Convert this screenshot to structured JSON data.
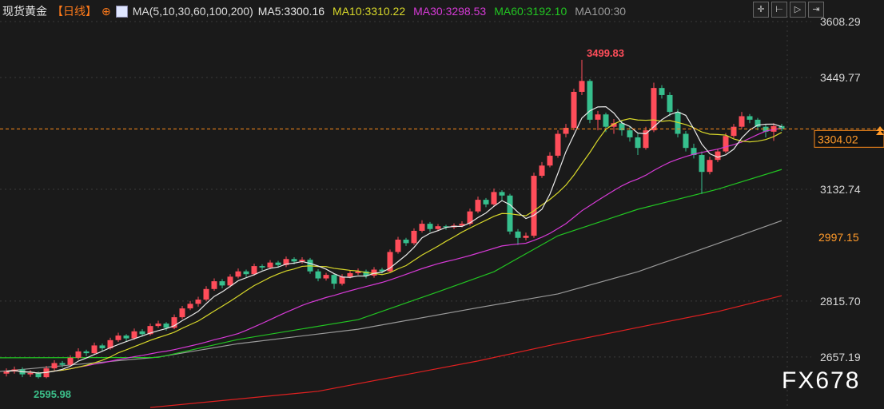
{
  "header": {
    "title": "现货黄金",
    "period": "【日线】",
    "ma_label": "MA(5,10,30,60,100,200)",
    "ma_values": [
      {
        "text": "MA5:3300.16",
        "color": "#e8e8e8"
      },
      {
        "text": "MA10:3310.22",
        "color": "#d8d82a"
      },
      {
        "text": "MA30:3298.53",
        "color": "#d63ad6"
      },
      {
        "text": "MA60:3192.10",
        "color": "#22c422"
      },
      {
        "text": "MA100:30",
        "color": "#9a9a9a"
      }
    ]
  },
  "toolbar": {
    "icons": [
      "crosshair-icon",
      "zoom-range-icon",
      "play-icon",
      "jump-end-icon"
    ]
  },
  "watermark": "FX678",
  "chart_data": {
    "type": "candlestick",
    "y_ticks": [
      "3608.29",
      "3449.77",
      "3132.74",
      "2815.70",
      "2657.19"
    ],
    "y_tick_values": [
      3608.29,
      3449.77,
      3132.74,
      2815.7,
      2657.19
    ],
    "highlight_label": {
      "text": "2997.15",
      "value": 2997.15
    },
    "current_price": {
      "text": "3304.02",
      "value": 3304.02
    },
    "annotations": [
      {
        "text": "3499.83",
        "index": 72,
        "value": 3499.83,
        "color": "#ff4d5a"
      },
      {
        "text": "2595.98",
        "index": 4,
        "value": 2595.98,
        "color": "#3cc08a"
      }
    ],
    "colors": {
      "up": "#ff4d5a",
      "down": "#36bf8d",
      "ma5": "#e8e8e8",
      "ma10": "#d8d82a",
      "ma30": "#d63ad6",
      "ma60": "#22c422",
      "ma100": "#9a9a9a",
      "ma200": "#e02020"
    },
    "ohlc": [
      [
        2610,
        2625,
        2602,
        2616
      ],
      [
        2616,
        2630,
        2610,
        2622
      ],
      [
        2622,
        2628,
        2600,
        2608
      ],
      [
        2608,
        2620,
        2601,
        2612
      ],
      [
        2612,
        2616,
        2595.98,
        2600
      ],
      [
        2600,
        2632,
        2597,
        2625
      ],
      [
        2625,
        2648,
        2620,
        2640
      ],
      [
        2640,
        2646,
        2628,
        2635
      ],
      [
        2635,
        2662,
        2630,
        2655
      ],
      [
        2655,
        2682,
        2650,
        2673
      ],
      [
        2673,
        2678,
        2660,
        2668
      ],
      [
        2668,
        2698,
        2664,
        2690
      ],
      [
        2690,
        2695,
        2675,
        2682
      ],
      [
        2682,
        2712,
        2678,
        2705
      ],
      [
        2705,
        2726,
        2700,
        2718
      ],
      [
        2718,
        2722,
        2702,
        2710
      ],
      [
        2710,
        2738,
        2706,
        2730
      ],
      [
        2730,
        2736,
        2715,
        2722
      ],
      [
        2722,
        2752,
        2718,
        2745
      ],
      [
        2745,
        2760,
        2740,
        2752
      ],
      [
        2752,
        2756,
        2732,
        2740
      ],
      [
        2740,
        2778,
        2736,
        2770
      ],
      [
        2770,
        2802,
        2765,
        2795
      ],
      [
        2795,
        2816,
        2790,
        2808
      ],
      [
        2808,
        2828,
        2800,
        2820
      ],
      [
        2820,
        2858,
        2815,
        2850
      ],
      [
        2850,
        2880,
        2845,
        2872
      ],
      [
        2872,
        2878,
        2852,
        2860
      ],
      [
        2860,
        2892,
        2855,
        2885
      ],
      [
        2885,
        2908,
        2880,
        2900
      ],
      [
        2900,
        2905,
        2884,
        2892
      ],
      [
        2892,
        2922,
        2888,
        2915
      ],
      [
        2915,
        2920,
        2903,
        2911
      ],
      [
        2911,
        2932,
        2906,
        2925
      ],
      [
        2925,
        2930,
        2910,
        2918
      ],
      [
        2918,
        2942,
        2912,
        2935
      ],
      [
        2935,
        2940,
        2920,
        2928
      ],
      [
        2928,
        2940,
        2922,
        2933
      ],
      [
        2933,
        2938,
        2893,
        2900
      ],
      [
        2900,
        2906,
        2872,
        2880
      ],
      [
        2880,
        2896,
        2874,
        2890
      ],
      [
        2890,
        2894,
        2850,
        2865
      ],
      [
        2865,
        2892,
        2860,
        2885
      ],
      [
        2885,
        2902,
        2880,
        2895
      ],
      [
        2895,
        2908,
        2890,
        2900
      ],
      [
        2900,
        2905,
        2880,
        2888
      ],
      [
        2888,
        2912,
        2882,
        2905
      ],
      [
        2905,
        2910,
        2894,
        2900
      ],
      [
        2900,
        2962,
        2896,
        2955
      ],
      [
        2955,
        2998,
        2950,
        2990
      ],
      [
        2990,
        2995,
        2972,
        2980
      ],
      [
        2980,
        3022,
        2975,
        3015
      ],
      [
        3015,
        3045,
        3010,
        3035
      ],
      [
        3035,
        3040,
        3012,
        3020
      ],
      [
        3020,
        3034,
        3014,
        3028
      ],
      [
        3028,
        3032,
        3018,
        3025
      ],
      [
        3025,
        3036,
        3020,
        3030
      ],
      [
        3030,
        3042,
        3025,
        3035
      ],
      [
        3035,
        3078,
        3030,
        3070
      ],
      [
        3070,
        3112,
        3065,
        3103
      ],
      [
        3103,
        3108,
        3082,
        3090
      ],
      [
        3090,
        3135,
        3085,
        3125
      ],
      [
        3125,
        3130,
        3100,
        3115
      ],
      [
        3115,
        3120,
        3005,
        3013
      ],
      [
        3013,
        3020,
        2975,
        2995
      ],
      [
        2995,
        3010,
        2988,
        3001
      ],
      [
        3001,
        3180,
        2995,
        3171
      ],
      [
        3171,
        3210,
        3165,
        3200
      ],
      [
        3200,
        3238,
        3195,
        3228
      ],
      [
        3228,
        3300,
        3222,
        3290
      ],
      [
        3290,
        3318,
        3280,
        3307
      ],
      [
        3307,
        3418,
        3300,
        3409
      ],
      [
        3409,
        3499.83,
        3400,
        3440
      ],
      [
        3440,
        3445,
        3320,
        3330
      ],
      [
        3330,
        3355,
        3300,
        3345
      ],
      [
        3345,
        3350,
        3295,
        3310
      ],
      [
        3310,
        3332,
        3290,
        3320
      ],
      [
        3320,
        3328,
        3285,
        3300
      ],
      [
        3300,
        3310,
        3268,
        3280
      ],
      [
        3280,
        3290,
        3230,
        3250
      ],
      [
        3250,
        3310,
        3245,
        3300
      ],
      [
        3300,
        3435,
        3295,
        3420
      ],
      [
        3420,
        3428,
        3390,
        3400
      ],
      [
        3400,
        3408,
        3340,
        3352
      ],
      [
        3352,
        3360,
        3280,
        3290
      ],
      [
        3290,
        3298,
        3240,
        3250
      ],
      [
        3250,
        3262,
        3220,
        3230
      ],
      [
        3230,
        3240,
        3120,
        3182
      ],
      [
        3182,
        3225,
        3175,
        3216
      ],
      [
        3216,
        3248,
        3210,
        3240
      ],
      [
        3240,
        3292,
        3235,
        3284
      ],
      [
        3284,
        3318,
        3278,
        3310
      ],
      [
        3310,
        3352,
        3305,
        3340
      ],
      [
        3340,
        3346,
        3320,
        3330
      ],
      [
        3330,
        3335,
        3300,
        3310
      ],
      [
        3310,
        3316,
        3280,
        3296
      ],
      [
        3296,
        3320,
        3270,
        3312
      ],
      [
        3312,
        3318,
        3298,
        3304.02
      ]
    ],
    "ma_long": {
      "ma60": [
        [
          -1,
          2655
        ],
        [
          19,
          2656
        ],
        [
          29,
          2707
        ],
        [
          44,
          2763
        ],
        [
          54,
          2842
        ],
        [
          61,
          2899
        ],
        [
          69,
          3001
        ],
        [
          79,
          3076
        ],
        [
          89,
          3133
        ],
        [
          97,
          3189
        ]
      ],
      "ma100": [
        [
          -1,
          2616
        ],
        [
          19,
          2657
        ],
        [
          29,
          2695
        ],
        [
          44,
          2736
        ],
        [
          59,
          2797
        ],
        [
          69,
          2836
        ],
        [
          79,
          2899
        ],
        [
          89,
          2979
        ],
        [
          97,
          3044
        ]
      ],
      "ma200": [
        [
          18,
          2514
        ],
        [
          39,
          2560
        ],
        [
          59,
          2646
        ],
        [
          69,
          2695
        ],
        [
          79,
          2741
        ],
        [
          89,
          2786
        ],
        [
          97,
          2831
        ]
      ]
    }
  }
}
